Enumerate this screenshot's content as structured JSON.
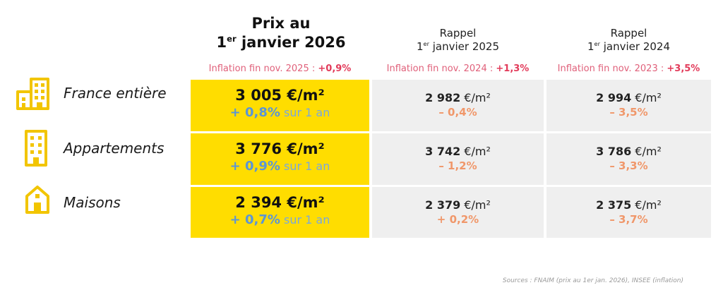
{
  "header": {
    "main_line1": "Prix au",
    "main_ord_num": "1",
    "main_ord_sup": "er",
    "main_date": " janvier 2026",
    "col2_line1": "Rappel",
    "col2_ord_num": "1",
    "col2_ord_sup": "er",
    "col2_date": " janvier 2025",
    "col3_line1": "Rappel",
    "col3_ord_num": "1",
    "col3_ord_sup": "er",
    "col3_date": " janvier 2024"
  },
  "inflation": [
    {
      "label": "Inflation fin nov. 2025 : ",
      "value": "+0,9%"
    },
    {
      "label": "Inflation fin nov. 2024 : ",
      "value": "+1,3%"
    },
    {
      "label": "Inflation fin nov. 2023 : ",
      "value": "+3,5%"
    }
  ],
  "rows": [
    {
      "label": "France entière",
      "icon": "buildings-icon",
      "current": {
        "price": "3 005 €/m²",
        "change": "+ 0,8%",
        "period": " sur 1 an"
      },
      "y2025": {
        "price_num": "2 982",
        "unit": " €/m²",
        "change": "– 0,4%"
      },
      "y2024": {
        "price_num": "2 994",
        "unit": " €/m²",
        "change": "– 3,5%"
      }
    },
    {
      "label": "Appartements",
      "icon": "apartment-building-icon",
      "current": {
        "price": "3 776 €/m²",
        "change": "+ 0,9%",
        "period": " sur 1 an"
      },
      "y2025": {
        "price_num": "3 742",
        "unit": " €/m²",
        "change": "– 1,2%"
      },
      "y2024": {
        "price_num": "3 786",
        "unit": " €/m²",
        "change": "– 3,3%"
      }
    },
    {
      "label": "Maisons",
      "icon": "house-icon",
      "current": {
        "price": "2 394 €/m²",
        "change": "+ 0,7%",
        "period": " sur 1 an"
      },
      "y2025": {
        "price_num": "2 379",
        "unit": " €/m²",
        "change": "+ 0,2%"
      },
      "y2024": {
        "price_num": "2 375",
        "unit": " €/m²",
        "change": "– 3,7%"
      }
    }
  ],
  "sources": "Sources : FNAIM (prix au 1er jan. 2026), INSEE (inflation)",
  "colors": {
    "accent_yellow": "#ffdd00",
    "cell_gray": "#efefef",
    "inflation_red": "#e23b5a",
    "blue_change": "#5b95d6",
    "orange_change": "#f0976a"
  }
}
